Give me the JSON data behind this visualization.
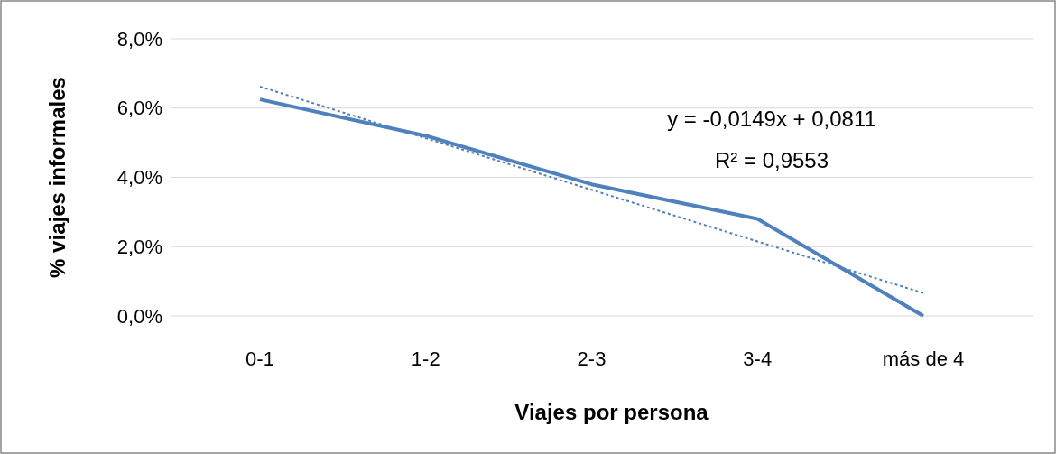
{
  "chart_data": {
    "type": "line",
    "xlabel": "Viajes por persona",
    "ylabel": "% viajes informales",
    "categories": [
      "0-1",
      "1-2",
      "2-3",
      "3-4",
      "más de 4"
    ],
    "series": [
      {
        "color": "#4f81bd",
        "values": [
          6.25,
          5.2,
          3.8,
          2.8,
          0.0
        ],
        "line_style": "solid"
      },
      {
        "type": "line",
        "color": "#4f81bd",
        "values": [
          6.62,
          5.13,
          3.64,
          2.15,
          0.66
        ],
        "line_style": "dotted"
      }
    ],
    "ylim": [
      0,
      8
    ],
    "yticks": [
      {
        "value": 0,
        "label": "0,0%"
      },
      {
        "value": 2,
        "label": "2,0%"
      },
      {
        "value": 4,
        "label": "4,0%"
      },
      {
        "value": 6,
        "label": "6,0%"
      },
      {
        "value": 8,
        "label": "8,0%"
      }
    ],
    "grid": "y",
    "marker": "none",
    "annotations": [
      "y = -0,0149x + 0,0811",
      "R² = 0,9553"
    ]
  }
}
